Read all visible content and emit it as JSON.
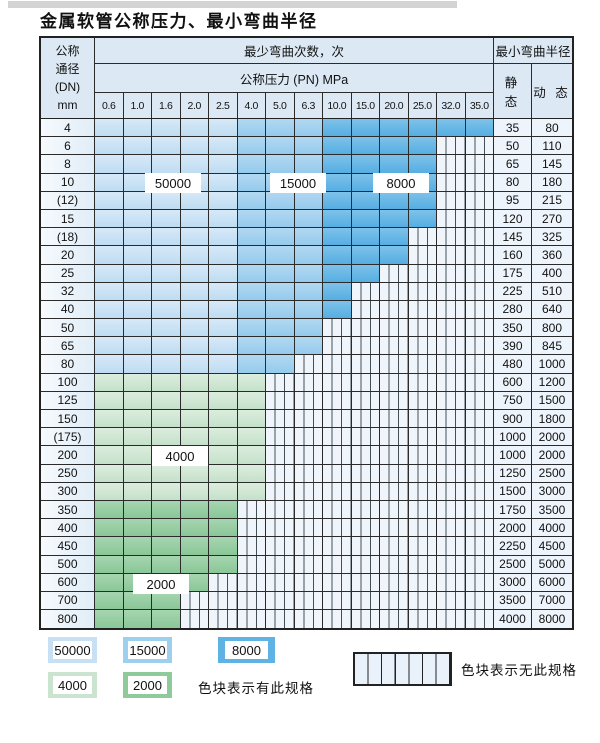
{
  "title": "金属软管公称压力、最小弯曲半径",
  "colors": {
    "cycles_50000": "#c7e0f4",
    "cycles_15000": "#9dcfee",
    "cycles_8000": "#5fb3e4",
    "cycles_4000": "#cbe4cf",
    "cycles_2000": "#8fca9b",
    "no_spec_bg": "#f0f5fb",
    "header_bg": "#dce9f5",
    "grid_line": "#2b2b2b"
  },
  "table": {
    "header": {
      "dn_lines": [
        "公称",
        "通径",
        "(DN)",
        "mm"
      ],
      "bend_cycles": "最少弯曲次数，次",
      "pn": "公称压力 (PN) MPa",
      "radius": "最小弯曲半径",
      "static": "静 态",
      "dynamic": "动 态",
      "pn_values": [
        "0.6",
        "1.0",
        "1.6",
        "2.0",
        "2.5",
        "4.0",
        "5.0",
        "6.3",
        "10.0",
        "15.0",
        "20.0",
        "25.0",
        "32.0",
        "35.0"
      ]
    },
    "zone_labels": [
      {
        "text": "50000"
      },
      {
        "text": "15000"
      },
      {
        "text": "8000"
      },
      {
        "text": "4000"
      },
      {
        "text": "2000"
      }
    ],
    "rows": [
      {
        "dn": "4",
        "colored": 14,
        "zone": "blue",
        "static": "35",
        "dynamic": "80"
      },
      {
        "dn": "6",
        "colored": 12,
        "zone": "blue",
        "static": "50",
        "dynamic": "110"
      },
      {
        "dn": "8",
        "colored": 12,
        "zone": "blue",
        "static": "65",
        "dynamic": "145"
      },
      {
        "dn": "10",
        "colored": 12,
        "zone": "blue",
        "static": "80",
        "dynamic": "180"
      },
      {
        "dn": "(12)",
        "colored": 12,
        "zone": "blue",
        "static": "95",
        "dynamic": "215"
      },
      {
        "dn": "15",
        "colored": 12,
        "zone": "blue",
        "static": "120",
        "dynamic": "270"
      },
      {
        "dn": "(18)",
        "colored": 11,
        "zone": "blue",
        "static": "145",
        "dynamic": "325"
      },
      {
        "dn": "20",
        "colored": 11,
        "zone": "blue",
        "static": "160",
        "dynamic": "360"
      },
      {
        "dn": "25",
        "colored": 10,
        "zone": "blue",
        "static": "175",
        "dynamic": "400"
      },
      {
        "dn": "32",
        "colored": 9,
        "zone": "blue",
        "static": "225",
        "dynamic": "510"
      },
      {
        "dn": "40",
        "colored": 9,
        "zone": "blue",
        "static": "280",
        "dynamic": "640"
      },
      {
        "dn": "50",
        "colored": 8,
        "zone": "blue",
        "static": "350",
        "dynamic": "800"
      },
      {
        "dn": "65",
        "colored": 8,
        "zone": "blue",
        "static": "390",
        "dynamic": "845"
      },
      {
        "dn": "80",
        "colored": 7,
        "zone": "blue",
        "static": "480",
        "dynamic": "1000"
      },
      {
        "dn": "100",
        "colored": 6,
        "zone": "g4000",
        "static": "600",
        "dynamic": "1200"
      },
      {
        "dn": "125",
        "colored": 6,
        "zone": "g4000",
        "static": "750",
        "dynamic": "1500"
      },
      {
        "dn": "150",
        "colored": 6,
        "zone": "g4000",
        "static": "900",
        "dynamic": "1800"
      },
      {
        "dn": "(175)",
        "colored": 6,
        "zone": "g4000",
        "static": "1000",
        "dynamic": "2000"
      },
      {
        "dn": "200",
        "colored": 6,
        "zone": "g4000",
        "static": "1000",
        "dynamic": "2000"
      },
      {
        "dn": "250",
        "colored": 6,
        "zone": "g4000",
        "static": "1250",
        "dynamic": "2500"
      },
      {
        "dn": "300",
        "colored": 6,
        "zone": "g4000",
        "static": "1500",
        "dynamic": "3000"
      },
      {
        "dn": "350",
        "colored": 5,
        "zone": "g2000",
        "static": "1750",
        "dynamic": "3500"
      },
      {
        "dn": "400",
        "colored": 5,
        "zone": "g2000",
        "static": "2000",
        "dynamic": "4000"
      },
      {
        "dn": "450",
        "colored": 5,
        "zone": "g2000",
        "static": "2250",
        "dynamic": "4500"
      },
      {
        "dn": "500",
        "colored": 5,
        "zone": "g2000",
        "static": "2500",
        "dynamic": "5000"
      },
      {
        "dn": "600",
        "colored": 4,
        "zone": "g2000",
        "static": "3000",
        "dynamic": "6000"
      },
      {
        "dn": "700",
        "colored": 3,
        "zone": "g2000",
        "static": "3500",
        "dynamic": "7000"
      },
      {
        "dn": "800",
        "colored": 3,
        "zone": "g2000",
        "static": "4000",
        "dynamic": "8000"
      }
    ]
  },
  "legend": {
    "items": [
      {
        "label": "50000"
      },
      {
        "label": "15000"
      },
      {
        "label": "8000"
      },
      {
        "label": "4000"
      },
      {
        "label": "2000"
      }
    ],
    "has_spec_text": "色块表示有此规格",
    "no_spec_text": "色块表示无此规格"
  }
}
